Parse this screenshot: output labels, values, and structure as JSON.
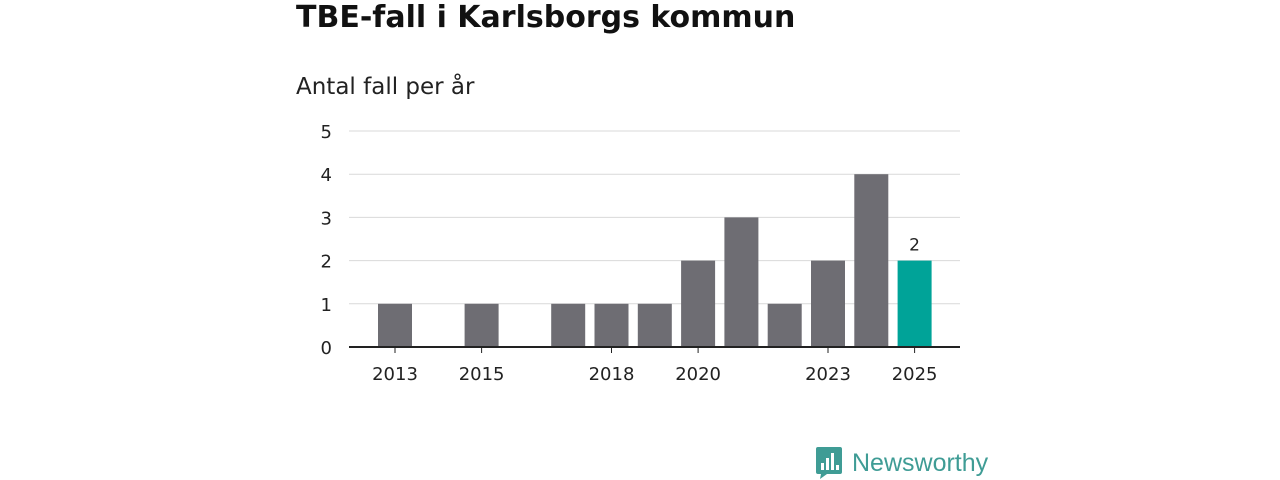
{
  "chart_data": {
    "type": "bar",
    "title": "TBE-fall i Karlsborgs kommun",
    "subtitle": "Antal fall per år",
    "xlabel": "",
    "ylabel": "",
    "ylim": [
      0,
      5
    ],
    "yticks": [
      "0",
      "1",
      "2",
      "3",
      "4",
      "5"
    ],
    "grid": true,
    "categories": [
      "2013",
      "2014",
      "2015",
      "2016",
      "2017",
      "2018",
      "2019",
      "2020",
      "2021",
      "2022",
      "2023",
      "2024",
      "2025"
    ],
    "values": [
      1,
      0,
      1,
      0,
      1,
      1,
      1,
      2,
      3,
      1,
      2,
      4,
      2
    ],
    "xtick_labels": [
      "2013",
      "2015",
      "2018",
      "2020",
      "2023",
      "2025"
    ],
    "highlight": {
      "category": "2025",
      "label": "2"
    },
    "colors": {
      "bar": "#6e6d73",
      "highlight": "#00a398",
      "grid": "#d9d9d9",
      "axis": "#222222"
    }
  },
  "brand": {
    "name": "Newsworthy",
    "icon": "bar-chart-logo-icon",
    "color": "#3f9c95"
  }
}
